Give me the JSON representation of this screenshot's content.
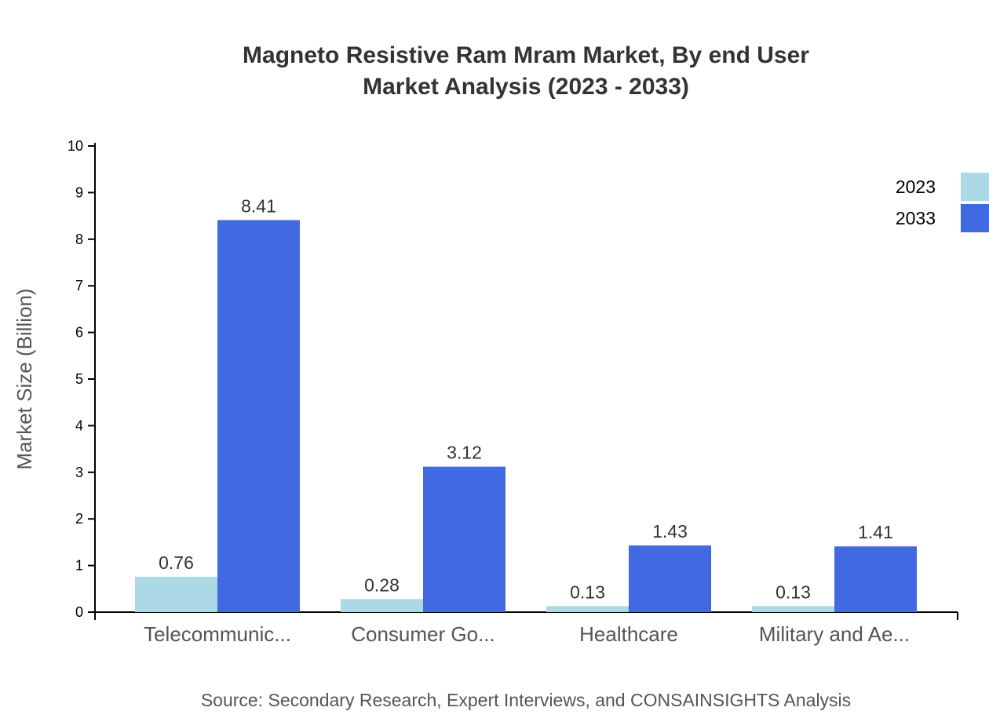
{
  "chart_data": {
    "type": "bar",
    "title": [
      "Magneto Resistive Ram Mram Market, By end User",
      "Market Analysis (2023 - 2033)"
    ],
    "xlabel": "",
    "ylabel": "Market Size (Billion)",
    "ylim": [
      0,
      10
    ],
    "yticks": [
      "0",
      "1",
      "2",
      "3",
      "4",
      "5",
      "6",
      "7",
      "8",
      "9",
      "10"
    ],
    "categories": [
      "Telecommunic...",
      "Consumer Go...",
      "Healthcare",
      "Military and Ae..."
    ],
    "series": [
      {
        "name": "2023",
        "color": "#add8e6",
        "values": [
          0.76,
          0.28,
          0.13,
          0.13
        ],
        "labels": [
          "0.76",
          "0.28",
          "0.13",
          "0.13"
        ]
      },
      {
        "name": "2033",
        "color": "#4169e1",
        "values": [
          8.41,
          3.12,
          1.43,
          1.41
        ],
        "labels": [
          "8.41",
          "3.12",
          "1.43",
          "1.41"
        ]
      }
    ],
    "legend": "top-right",
    "grid": false
  },
  "source": "Source: Secondary Research, Expert Interviews, and CONSAINSIGHTS Analysis"
}
